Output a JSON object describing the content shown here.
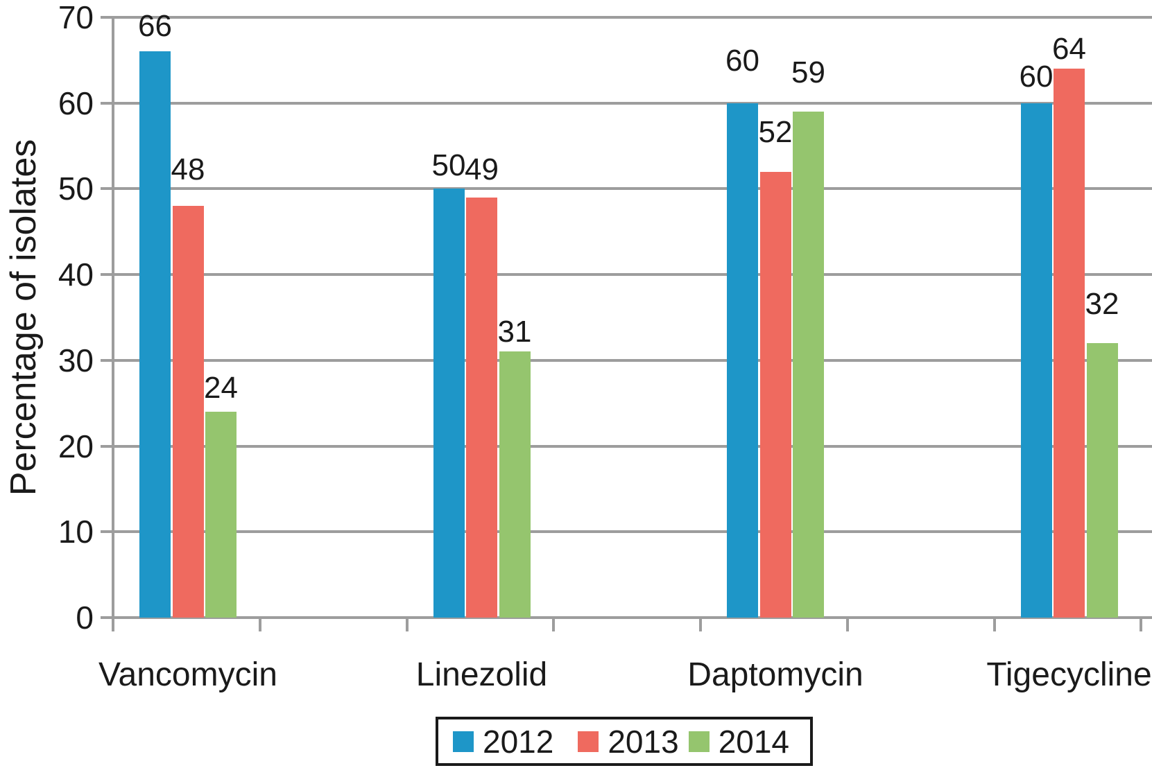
{
  "chart_data": {
    "type": "bar",
    "title": "",
    "xlabel": "",
    "ylabel": "Percentage of isolates",
    "categories": [
      "Vancomycin",
      "Linezolid",
      "Daptomycin",
      "Tigecycline"
    ],
    "series": [
      {
        "name": "2012",
        "color": "#1e96c8",
        "values": [
          66,
          50,
          60,
          60
        ],
        "label_dy": [
          14,
          11,
          39,
          16
        ]
      },
      {
        "name": "2013",
        "color": "#ef6a5f",
        "values": [
          48,
          49,
          52,
          64
        ],
        "label_dy": [
          30,
          18,
          35,
          6
        ]
      },
      {
        "name": "2014",
        "color": "#95c56e",
        "values": [
          24,
          31,
          59,
          32
        ],
        "label_dy": [
          12,
          6,
          34,
          34
        ]
      }
    ],
    "y_ticks": [
      "0",
      "10",
      "20",
      "30",
      "40",
      "50",
      "60",
      "70"
    ],
    "ylim": [
      0,
      70
    ],
    "grid": true,
    "data_labels": true,
    "legend_position": "bottom",
    "style": {
      "axis_color": "#9d9d9d",
      "grid_color": "#9d9d9d",
      "text_color": "#1a1a1a",
      "legend_border_color": "#1a1a1a",
      "background": "#ffffff"
    }
  }
}
